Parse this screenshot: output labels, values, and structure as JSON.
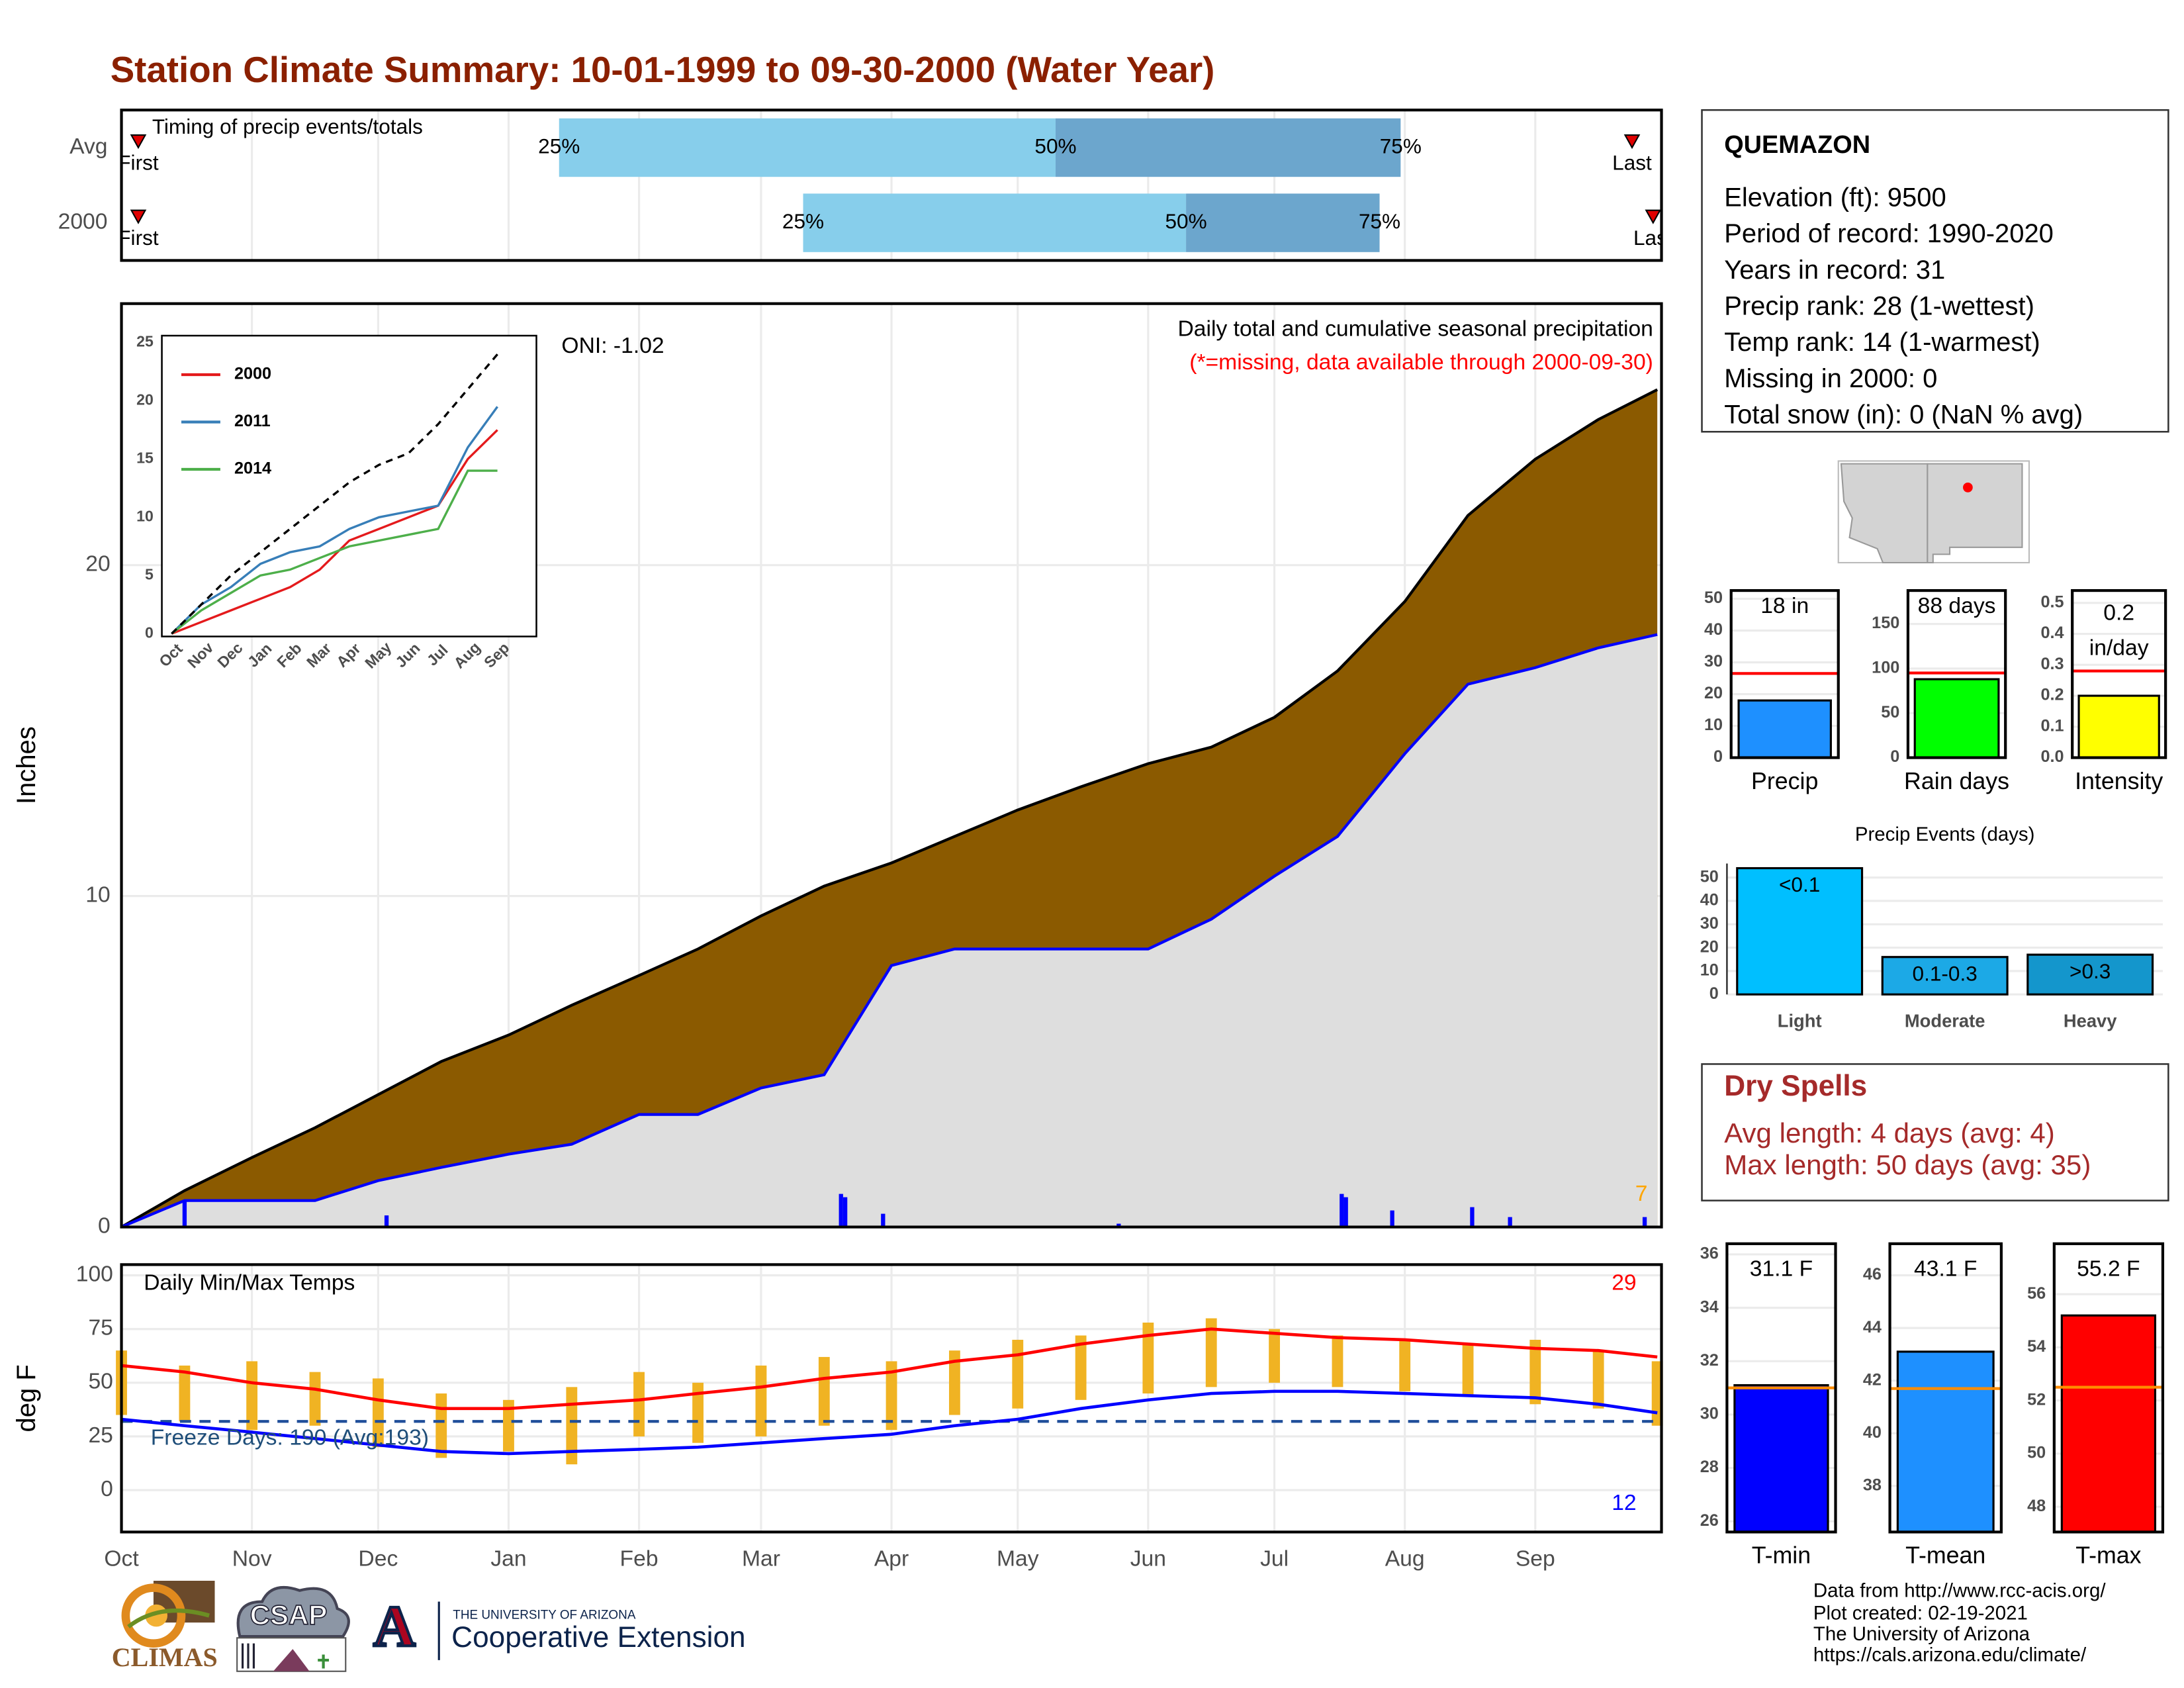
{
  "title": "Station Climate Summary: 10-01-1999 to 09-30-2000 (Water Year)",
  "station": {
    "name": "QUEMAZON",
    "lines": [
      "Elevation (ft): 9500",
      "Period of record: 1990-2020",
      "Years in record: 31",
      "Precip rank: 28 (1-wettest)",
      "Temp rank: 14 (1-warmest)",
      "Missing in 2000: 0",
      "Total snow (in): 0 (NaN % avg)"
    ]
  },
  "dry_spells": {
    "title": "Dry Spells",
    "lines": [
      "Avg length: 4 days (avg: 4)",
      "Max length: 50 days (avg: 35)"
    ]
  },
  "footer": [
    "Data from http://www.rcc-acis.org/",
    "Plot created: 02-19-2021",
    "The University of Arizona",
    "https://cals.arizona.edu/climate/"
  ],
  "logos": {
    "climas": "CLIMAS",
    "csap": "CSAP",
    "ua_mark": "A",
    "ua_name": "THE UNIVERSITY OF ARIZONA",
    "extension": "Cooperative Extension"
  },
  "chart_data": [
    {
      "type": "range",
      "subtitle": "Timing of precip events/totals",
      "categories": [
        "Avg",
        "2000"
      ],
      "quartiles": [
        [
          104,
          222,
          304
        ],
        [
          162,
          253,
          299
        ]
      ],
      "quartile_labels": [
        "25%",
        "50%",
        "75%"
      ],
      "first": [
        4,
        4
      ],
      "last": [
        359,
        364
      ],
      "first_label": "First",
      "last_label": "Last",
      "colors": [
        "#87ceeb",
        "#6ca6cd"
      ],
      "marker_color": "#e00000",
      "xlim": [
        0,
        366
      ],
      "xticks": [
        0,
        31,
        61,
        92,
        123,
        152,
        183,
        213,
        244,
        274,
        305,
        336
      ],
      "grid": true
    },
    {
      "type": "area",
      "title": "Daily total and cumulative seasonal precipitation",
      "annotations": [
        {
          "text": "ONI: -1.02"
        },
        {
          "text": "(*=missing, data available through 2000-09-30)",
          "color": "#ff0000"
        },
        {
          "text": "7",
          "color": "#ffa500"
        }
      ],
      "ylabel": "Inches",
      "x": [
        0,
        15,
        31,
        46,
        61,
        76,
        92,
        107,
        123,
        137,
        152,
        167,
        183,
        198,
        213,
        228,
        244,
        259,
        274,
        289,
        305,
        320,
        336,
        351,
        365
      ],
      "series": [
        {
          "color": "#000000",
          "fill": "#8b5a00",
          "values": [
            0,
            1.1,
            2.1,
            3.0,
            4.0,
            5.0,
            5.8,
            6.7,
            7.6,
            8.4,
            9.4,
            10.3,
            11.0,
            11.8,
            12.6,
            13.3,
            14.0,
            14.5,
            15.4,
            16.8,
            18.9,
            21.5,
            23.2,
            24.4,
            25.3
          ]
        },
        {
          "color": "#0000ff",
          "fill": "#dedede",
          "values": [
            0,
            0.8,
            0.8,
            0.8,
            1.4,
            1.8,
            2.2,
            2.5,
            3.4,
            3.4,
            4.2,
            4.6,
            7.9,
            8.4,
            8.4,
            8.4,
            8.4,
            9.3,
            10.6,
            11.8,
            14.3,
            16.4,
            16.9,
            17.5,
            17.9
          ]
        }
      ],
      "bars": {
        "color": "#0000ff",
        "x": [
          15,
          63,
          171,
          172,
          181,
          237,
          290,
          291,
          302,
          321,
          330,
          362
        ],
        "values": [
          0.8,
          0.35,
          1.0,
          0.9,
          0.4,
          0.1,
          1.0,
          0.9,
          0.5,
          0.6,
          0.3,
          0.3
        ]
      },
      "xlim": [
        0,
        366
      ],
      "xticks": [
        0,
        31,
        61,
        92,
        123,
        152,
        183,
        213,
        244,
        274,
        305,
        336
      ],
      "ylim": [
        0,
        27.9
      ],
      "yticks": [
        0,
        10,
        20
      ],
      "grid": true
    },
    {
      "type": "line",
      "categories": [
        "Oct",
        "Nov",
        "Dec",
        "Jan",
        "Feb",
        "Mar",
        "Apr",
        "May",
        "Jun",
        "Jul",
        "Aug",
        "Sep"
      ],
      "series": [
        {
          "name": "2000",
          "color": "#e41a1c",
          "values": [
            0,
            1,
            2,
            3,
            4,
            5.5,
            8,
            9,
            10,
            11,
            15,
            17.5
          ]
        },
        {
          "name": "2011",
          "color": "#377eb8",
          "values": [
            0,
            2.5,
            4,
            6,
            7,
            7.5,
            9,
            10,
            10.5,
            11,
            16,
            19.5
          ]
        },
        {
          "name": "2014",
          "color": "#4daf4a",
          "values": [
            0,
            2,
            3.5,
            5,
            5.5,
            6.5,
            7.5,
            8,
            8.5,
            9,
            14,
            14
          ]
        },
        {
          "color": "#000000",
          "dash": true,
          "values": [
            0,
            2.5,
            5,
            7,
            9,
            11,
            13,
            14.5,
            15.5,
            18,
            21,
            24
          ]
        }
      ],
      "ylim": [
        0,
        25.6
      ],
      "yticks": [
        0,
        5,
        10,
        15,
        20,
        25
      ],
      "grid": false
    },
    {
      "type": "line",
      "title": "Daily Min/Max Temps",
      "ylabel": "deg F",
      "annotations": [
        {
          "text": "Freeze Days: 190 (Avg:193)",
          "color": "#1f4e79"
        },
        {
          "text": "29",
          "color": "#ff0000"
        },
        {
          "text": "12",
          "color": "#0000ff"
        }
      ],
      "x": [
        0,
        15,
        31,
        46,
        61,
        76,
        92,
        107,
        123,
        137,
        152,
        167,
        183,
        198,
        213,
        228,
        244,
        259,
        274,
        289,
        305,
        320,
        336,
        351,
        365
      ],
      "series": [
        {
          "color": "#ff0000",
          "values": [
            58,
            55,
            50,
            47,
            42,
            38,
            38,
            40,
            42,
            45,
            48,
            52,
            55,
            60,
            63,
            68,
            72,
            75,
            73,
            71,
            70,
            68,
            66,
            65,
            62
          ]
        },
        {
          "color": "#0000ff",
          "values": [
            33,
            30,
            27,
            24,
            21,
            18,
            17,
            18,
            19,
            20,
            22,
            24,
            26,
            30,
            33,
            38,
            42,
            45,
            46,
            46,
            45,
            44,
            43,
            40,
            36
          ]
        }
      ],
      "ranges": {
        "color": "#f0b323",
        "high": [
          65,
          58,
          60,
          55,
          52,
          45,
          42,
          48,
          55,
          50,
          58,
          62,
          60,
          65,
          70,
          72,
          78,
          80,
          75,
          72,
          70,
          68,
          70,
          65,
          60
        ],
        "low": [
          35,
          32,
          28,
          30,
          20,
          15,
          18,
          12,
          25,
          22,
          25,
          30,
          28,
          35,
          38,
          42,
          45,
          48,
          50,
          48,
          46,
          44,
          40,
          38,
          30
        ]
      },
      "reference": 32,
      "reference_color": "#1f4e9a",
      "xlim": [
        0,
        366
      ],
      "xticks": [
        {
          "value": 0,
          "label": "Oct"
        },
        {
          "value": 31,
          "label": "Nov"
        },
        {
          "value": 61,
          "label": "Dec"
        },
        {
          "value": 92,
          "label": "Jan"
        },
        {
          "value": 123,
          "label": "Feb"
        },
        {
          "value": 152,
          "label": "Mar"
        },
        {
          "value": 183,
          "label": "Apr"
        },
        {
          "value": 213,
          "label": "May"
        },
        {
          "value": 244,
          "label": "Jun"
        },
        {
          "value": 274,
          "label": "Jul"
        },
        {
          "value": 305,
          "label": "Aug"
        },
        {
          "value": 336,
          "label": "Sep"
        }
      ],
      "ylim": [
        -19.5,
        105
      ],
      "yticks": [
        0,
        25,
        50,
        75,
        100
      ],
      "grid": true
    },
    {
      "type": "bar",
      "categories": [
        "Precip"
      ],
      "values": [
        18
      ],
      "value_labels": [
        "18 in"
      ],
      "color": "#1e90ff",
      "reference": 26.5,
      "reference_color": "#ff0000",
      "ylim": [
        0,
        52.6
      ],
      "yticks": [
        0,
        10,
        20,
        30,
        40,
        50
      ]
    },
    {
      "type": "bar",
      "categories": [
        "Rain days"
      ],
      "values": [
        88
      ],
      "value_labels": [
        "88 days"
      ],
      "color": "#00ff00",
      "reference": 95,
      "reference_color": "#ff0000",
      "ylim": [
        0,
        187.5
      ],
      "yticks": [
        0,
        50,
        100,
        150
      ]
    },
    {
      "type": "bar",
      "categories": [
        "Intensity"
      ],
      "values": [
        0.2
      ],
      "value_labels": [
        [
          "0.2",
          "in/day"
        ]
      ],
      "color": "#ffff00",
      "reference": 0.28,
      "reference_color": "#ff0000",
      "ylim": [
        0,
        0.54
      ],
      "yticks": [
        {
          "value": 0,
          "label": "0.0"
        },
        0.1,
        0.2,
        0.3,
        0.4,
        0.5
      ]
    },
    {
      "type": "bar",
      "title": "Precip Events (days)",
      "categories": [
        "Light",
        "Moderate",
        "Heavy"
      ],
      "values": [
        54,
        16,
        17
      ],
      "class_labels": [
        "<0.1",
        "0.1-0.3",
        ">0.3"
      ],
      "colors": [
        "#00bfff",
        "#1ca9e6",
        "#1496cc"
      ],
      "ylim": [
        0,
        56
      ],
      "yticks": [
        0,
        10,
        20,
        30,
        40,
        50
      ]
    },
    {
      "type": "bar",
      "categories": [
        "T-min"
      ],
      "values": [
        31.1
      ],
      "value_labels": [
        "31.1 F"
      ],
      "color": "#0000ff",
      "reference": 31.0,
      "reference_color": "#ff8c00",
      "ylim": [
        25.6,
        36.4
      ],
      "yticks": [
        26,
        28,
        30,
        32,
        34,
        36
      ]
    },
    {
      "type": "bar",
      "categories": [
        "T-mean"
      ],
      "values": [
        43.1
      ],
      "value_labels": [
        "43.1 F"
      ],
      "color": "#1e90ff",
      "reference": 41.7,
      "reference_color": "#ff8c00",
      "ylim": [
        36.25,
        47.2
      ],
      "yticks": [
        38,
        40,
        42,
        44,
        46
      ]
    },
    {
      "type": "bar",
      "categories": [
        "T-max"
      ],
      "values": [
        55.2
      ],
      "value_labels": [
        "55.2 F"
      ],
      "color": "#ff0000",
      "reference": 52.5,
      "reference_color": "#ff8c00",
      "ylim": [
        47.05,
        57.9
      ],
      "yticks": [
        48,
        50,
        52,
        54,
        56
      ]
    }
  ]
}
